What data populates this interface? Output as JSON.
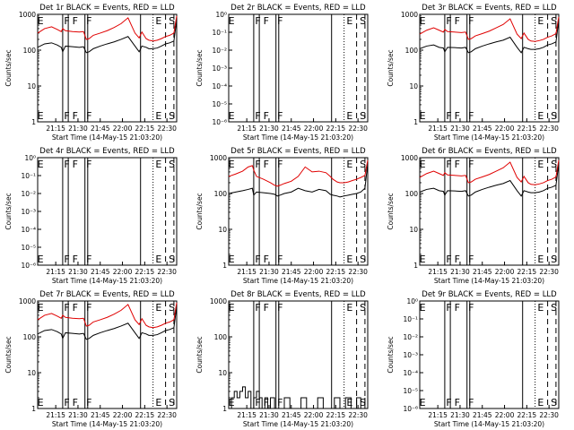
{
  "chart_data": [
    {
      "type": "line",
      "title": "Det 1r BLACK = Events, RED = LLD",
      "xlabel": "Start Time (14-May-15 21:03:20)",
      "ylabel": "Counts/sec",
      "scale": "log",
      "xlim": [
        0,
        100
      ],
      "ylim": [
        1,
        1000
      ],
      "x_ticks": [
        "21:15",
        "21:30",
        "21:45",
        "22:00",
        "22:15",
        "22:30"
      ],
      "y_ticks": [
        "1",
        "10",
        "100",
        "1000"
      ],
      "markers": [
        "E",
        "F",
        "F",
        "F",
        "E",
        "S"
      ],
      "series": [
        {
          "color": "#000000",
          "x": [
            0,
            5,
            10,
            14,
            17,
            18,
            20,
            25,
            30,
            33,
            35,
            37,
            40,
            45,
            50,
            55,
            60,
            65,
            70,
            73,
            75,
            78,
            80,
            83,
            86,
            89,
            92,
            95,
            98,
            100
          ],
          "y": [
            120,
            150,
            160,
            140,
            120,
            90,
            130,
            125,
            120,
            125,
            85,
            90,
            110,
            130,
            150,
            170,
            200,
            240,
            130,
            90,
            130,
            120,
            110,
            110,
            115,
            130,
            150,
            160,
            180,
            700
          ]
        },
        {
          "color": "#e00000",
          "x": [
            0,
            5,
            10,
            14,
            17,
            18,
            20,
            25,
            30,
            33,
            35,
            37,
            40,
            45,
            50,
            55,
            60,
            65,
            70,
            73,
            75,
            78,
            80,
            83,
            86,
            89,
            92,
            95,
            98,
            100
          ],
          "y": [
            300,
            400,
            450,
            380,
            330,
            400,
            350,
            330,
            320,
            330,
            200,
            210,
            260,
            300,
            350,
            430,
            550,
            800,
            300,
            220,
            320,
            210,
            190,
            180,
            190,
            210,
            240,
            260,
            300,
            900
          ]
        }
      ]
    },
    {
      "type": "line",
      "title": "Det 2r BLACK = Events, RED = LLD",
      "xlabel": "Start Time (14-May-15 21:03:20)",
      "ylabel": "Counts/sec",
      "scale": "tiny",
      "ylim": [
        1e-06,
        1
      ],
      "x_ticks": [
        "21:15",
        "21:30",
        "21:45",
        "22:00",
        "22:15",
        "22:30"
      ],
      "y_ticks": [
        "10⁻⁶",
        "10⁻⁵",
        "10⁻⁴",
        "10⁻³",
        "10⁻²",
        "10⁻¹",
        "10⁰"
      ],
      "markers": [
        "E",
        "F",
        "F",
        "F",
        "E",
        "S"
      ],
      "series": []
    },
    {
      "type": "line",
      "title": "Det 3r BLACK = Events, RED = LLD",
      "xlabel": "Start Time (14-May-15 21:03:20)",
      "ylabel": "Counts/sec",
      "scale": "log",
      "ylim": [
        1,
        1000
      ],
      "x_ticks": [
        "21:15",
        "21:30",
        "21:45",
        "22:00",
        "22:15",
        "22:30"
      ],
      "y_ticks": [
        "1",
        "10",
        "100",
        "1000"
      ],
      "markers": [
        "E",
        "F",
        "F",
        "F",
        "E",
        "S"
      ],
      "series": [
        {
          "color": "#000000",
          "x": [
            0,
            5,
            10,
            14,
            17,
            18,
            20,
            25,
            30,
            33,
            35,
            37,
            40,
            45,
            50,
            55,
            60,
            65,
            70,
            73,
            75,
            78,
            80,
            83,
            86,
            89,
            92,
            95,
            98,
            100
          ],
          "y": [
            110,
            130,
            140,
            120,
            115,
            90,
            120,
            118,
            115,
            120,
            85,
            90,
            110,
            130,
            150,
            170,
            190,
            230,
            120,
            85,
            120,
            110,
            105,
            105,
            110,
            120,
            140,
            150,
            170,
            700
          ]
        },
        {
          "color": "#e00000",
          "x": [
            0,
            5,
            10,
            14,
            17,
            18,
            20,
            25,
            30,
            33,
            35,
            37,
            40,
            45,
            50,
            55,
            60,
            65,
            70,
            73,
            75,
            78,
            80,
            83,
            86,
            89,
            92,
            95,
            98,
            100
          ],
          "y": [
            280,
            360,
            420,
            360,
            320,
            380,
            330,
            320,
            310,
            320,
            200,
            210,
            250,
            290,
            340,
            420,
            520,
            750,
            280,
            210,
            300,
            200,
            180,
            175,
            185,
            200,
            230,
            250,
            290,
            850
          ]
        }
      ]
    },
    {
      "type": "line",
      "title": "Det 4r BLACK = Events, RED = LLD",
      "xlabel": "Start Time (14-May-15 21:03:20)",
      "ylabel": "Counts/sec",
      "scale": "tiny",
      "ylim": [
        1e-06,
        1
      ],
      "x_ticks": [
        "21:15",
        "21:30",
        "21:45",
        "22:00",
        "22:15",
        "22:30"
      ],
      "y_ticks": [
        "10⁻⁶",
        "10⁻⁵",
        "10⁻⁴",
        "10⁻³",
        "10⁻²",
        "10⁻¹",
        "10⁰"
      ],
      "markers": [
        "E",
        "F",
        "F",
        "F",
        "E",
        "S"
      ],
      "series": []
    },
    {
      "type": "line",
      "title": "Det 5r BLACK = Events, RED = LLD",
      "xlabel": "Start Time (14-May-15 21:03:20)",
      "ylabel": "Counts/sec",
      "scale": "log",
      "ylim": [
        1,
        1000
      ],
      "x_ticks": [
        "21:15",
        "21:30",
        "21:45",
        "22:00",
        "22:15",
        "22:30"
      ],
      "y_ticks": [
        "1",
        "10",
        "100",
        "1000"
      ],
      "markers": [
        "E",
        "F",
        "F",
        "F",
        "E",
        "S"
      ],
      "series": [
        {
          "color": "#000000",
          "x": [
            0,
            5,
            10,
            14,
            17,
            18,
            20,
            25,
            30,
            33,
            35,
            37,
            40,
            45,
            50,
            55,
            60,
            65,
            70,
            73,
            75,
            78,
            80,
            83,
            86,
            89,
            92,
            95,
            98,
            100
          ],
          "y": [
            100,
            110,
            120,
            130,
            140,
            90,
            110,
            105,
            100,
            95,
            85,
            90,
            100,
            110,
            140,
            120,
            110,
            130,
            120,
            95,
            90,
            85,
            80,
            85,
            90,
            95,
            100,
            110,
            140,
            700
          ]
        },
        {
          "color": "#e00000",
          "x": [
            0,
            5,
            10,
            14,
            17,
            18,
            20,
            25,
            30,
            33,
            35,
            37,
            40,
            45,
            50,
            55,
            60,
            65,
            70,
            73,
            75,
            78,
            80,
            83,
            86,
            89,
            92,
            95,
            98,
            100
          ],
          "y": [
            300,
            350,
            420,
            550,
            600,
            450,
            300,
            250,
            200,
            170,
            160,
            170,
            190,
            220,
            300,
            550,
            400,
            420,
            380,
            300,
            250,
            210,
            200,
            200,
            210,
            230,
            250,
            280,
            320,
            850
          ]
        }
      ]
    },
    {
      "type": "line",
      "title": "Det 6r BLACK = Events, RED = LLD",
      "xlabel": "Start Time (14-May-15 21:03:20)",
      "ylabel": "Counts/sec",
      "scale": "log",
      "ylim": [
        1,
        1000
      ],
      "x_ticks": [
        "21:15",
        "21:30",
        "21:45",
        "22:00",
        "22:15",
        "22:30"
      ],
      "y_ticks": [
        "1",
        "10",
        "100",
        "1000"
      ],
      "markers": [
        "E",
        "F",
        "F",
        "F",
        "E",
        "S"
      ],
      "series": [
        {
          "color": "#000000",
          "x": [
            0,
            5,
            10,
            14,
            17,
            18,
            20,
            25,
            30,
            33,
            35,
            37,
            40,
            45,
            50,
            55,
            60,
            65,
            70,
            73,
            75,
            78,
            80,
            83,
            86,
            89,
            92,
            95,
            98,
            100
          ],
          "y": [
            110,
            130,
            140,
            120,
            115,
            90,
            120,
            118,
            115,
            120,
            85,
            90,
            110,
            130,
            150,
            170,
            190,
            230,
            120,
            85,
            120,
            110,
            105,
            105,
            110,
            120,
            140,
            150,
            170,
            700
          ]
        },
        {
          "color": "#e00000",
          "x": [
            0,
            5,
            10,
            14,
            17,
            18,
            20,
            25,
            30,
            33,
            35,
            37,
            40,
            45,
            50,
            55,
            60,
            65,
            70,
            73,
            75,
            78,
            80,
            83,
            86,
            89,
            92,
            95,
            98,
            100
          ],
          "y": [
            280,
            360,
            420,
            360,
            320,
            380,
            330,
            320,
            310,
            320,
            200,
            210,
            250,
            290,
            340,
            420,
            520,
            750,
            280,
            210,
            300,
            200,
            180,
            175,
            185,
            200,
            230,
            250,
            290,
            850
          ]
        }
      ]
    },
    {
      "type": "line",
      "title": "Det 7r BLACK = Events, RED = LLD",
      "xlabel": "Start Time (14-May-15 21:03:20)",
      "ylabel": "Counts/sec",
      "scale": "log",
      "ylim": [
        1,
        1000
      ],
      "x_ticks": [
        "21:15",
        "21:30",
        "21:45",
        "22:00",
        "22:15",
        "22:30"
      ],
      "y_ticks": [
        "1",
        "10",
        "100",
        "1000"
      ],
      "markers": [
        "E",
        "F",
        "F",
        "F",
        "E",
        "S"
      ],
      "series": [
        {
          "color": "#000000",
          "x": [
            0,
            5,
            10,
            14,
            17,
            18,
            20,
            25,
            30,
            33,
            35,
            37,
            40,
            45,
            50,
            55,
            60,
            65,
            70,
            73,
            75,
            78,
            80,
            83,
            86,
            89,
            92,
            95,
            98,
            100
          ],
          "y": [
            120,
            150,
            160,
            140,
            120,
            90,
            130,
            125,
            120,
            125,
            85,
            90,
            110,
            130,
            150,
            170,
            200,
            240,
            130,
            90,
            130,
            120,
            110,
            110,
            115,
            130,
            150,
            160,
            180,
            700
          ]
        },
        {
          "color": "#e00000",
          "x": [
            0,
            5,
            10,
            14,
            17,
            18,
            20,
            25,
            30,
            33,
            35,
            37,
            40,
            45,
            50,
            55,
            60,
            65,
            70,
            73,
            75,
            78,
            80,
            83,
            86,
            89,
            92,
            95,
            98,
            100
          ],
          "y": [
            300,
            400,
            450,
            380,
            330,
            400,
            350,
            330,
            320,
            330,
            200,
            210,
            260,
            300,
            350,
            430,
            550,
            800,
            300,
            220,
            320,
            210,
            190,
            180,
            190,
            210,
            240,
            260,
            300,
            900
          ]
        }
      ]
    },
    {
      "type": "line",
      "title": "Det 8r BLACK = Events, RED = LLD",
      "xlabel": "Start Time (14-May-15 21:03:20)",
      "ylabel": "Counts/sec",
      "scale": "log",
      "ylim": [
        1,
        1000
      ],
      "x_ticks": [
        "21:15",
        "21:30",
        "21:45",
        "22:00",
        "22:15",
        "22:30"
      ],
      "y_ticks": [
        "1",
        "10",
        "100",
        "1000"
      ],
      "markers": [
        "E",
        "F",
        "F",
        "F",
        "E",
        "S"
      ],
      "series": [
        {
          "color": "#000000",
          "step": true,
          "x": [
            0,
            2,
            4,
            6,
            8,
            10,
            12,
            14,
            16,
            18,
            20,
            22,
            24,
            26,
            28,
            30,
            33,
            36,
            40,
            44,
            48,
            52,
            56,
            60,
            64,
            68,
            72,
            76,
            80,
            84,
            88,
            92,
            95,
            98
          ],
          "y": [
            1,
            2,
            3,
            2,
            3,
            4,
            2,
            3,
            1,
            2,
            3,
            2,
            1,
            2,
            1,
            2,
            1,
            1,
            2,
            1,
            1,
            2,
            1,
            1,
            2,
            1,
            1,
            2,
            1,
            2,
            1,
            2,
            1,
            2
          ]
        }
      ]
    },
    {
      "type": "line",
      "title": "Det 9r BLACK = Events, RED = LLD",
      "xlabel": "Start Time (14-May-15 21:03:20)",
      "ylabel": "Counts/sec",
      "scale": "tiny",
      "ylim": [
        1e-06,
        1
      ],
      "x_ticks": [
        "21:15",
        "21:30",
        "21:45",
        "22:00",
        "22:15",
        "22:30"
      ],
      "y_ticks": [
        "10⁻⁶",
        "10⁻⁵",
        "10⁻⁴",
        "10⁻³",
        "10⁻²",
        "10⁻¹",
        "10⁰"
      ],
      "markers": [
        "E",
        "F",
        "F",
        "F",
        "E",
        "S"
      ],
      "series": []
    }
  ]
}
